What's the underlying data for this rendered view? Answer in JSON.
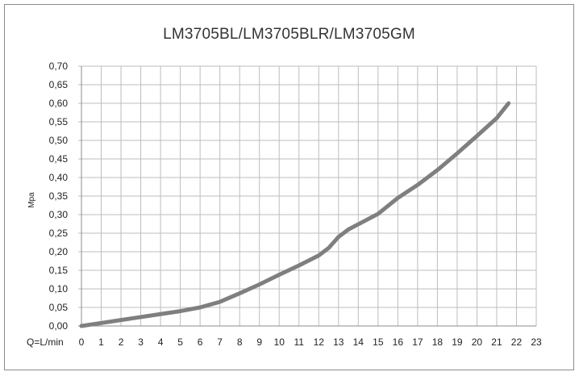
{
  "chart_data": {
    "type": "line",
    "title": "LM3705BL/LM3705BLR/LM3705GM",
    "xlabel": "Q=L/min",
    "ylabel": "Mpa",
    "xlim": [
      0,
      23
    ],
    "ylim": [
      0,
      0.7
    ],
    "x_ticks": [
      "0",
      "1",
      "2",
      "3",
      "4",
      "5",
      "6",
      "7",
      "8",
      "9",
      "10",
      "11",
      "12",
      "13",
      "14",
      "15",
      "16",
      "17",
      "18",
      "19",
      "20",
      "21",
      "22",
      "23"
    ],
    "y_ticks": [
      "0,00",
      "0,05",
      "0,10",
      "0,15",
      "0,20",
      "0,25",
      "0,30",
      "0,35",
      "0,40",
      "0,45",
      "0,50",
      "0,55",
      "0,60",
      "0,65",
      "0,70"
    ],
    "grid": true,
    "line_color": "#7f7f7f",
    "series": [
      {
        "x": [
          0,
          1,
          2,
          3,
          4,
          5,
          6,
          7,
          8,
          9,
          10,
          11,
          12,
          12.5,
          13,
          13.5,
          14,
          15,
          16,
          17,
          18,
          19,
          20,
          21,
          21.6
        ],
        "y": [
          0.0,
          0.008,
          0.016,
          0.024,
          0.032,
          0.04,
          0.05,
          0.065,
          0.088,
          0.112,
          0.138,
          0.163,
          0.19,
          0.21,
          0.24,
          0.26,
          0.274,
          0.302,
          0.345,
          0.38,
          0.42,
          0.465,
          0.512,
          0.56,
          0.6
        ]
      }
    ]
  }
}
